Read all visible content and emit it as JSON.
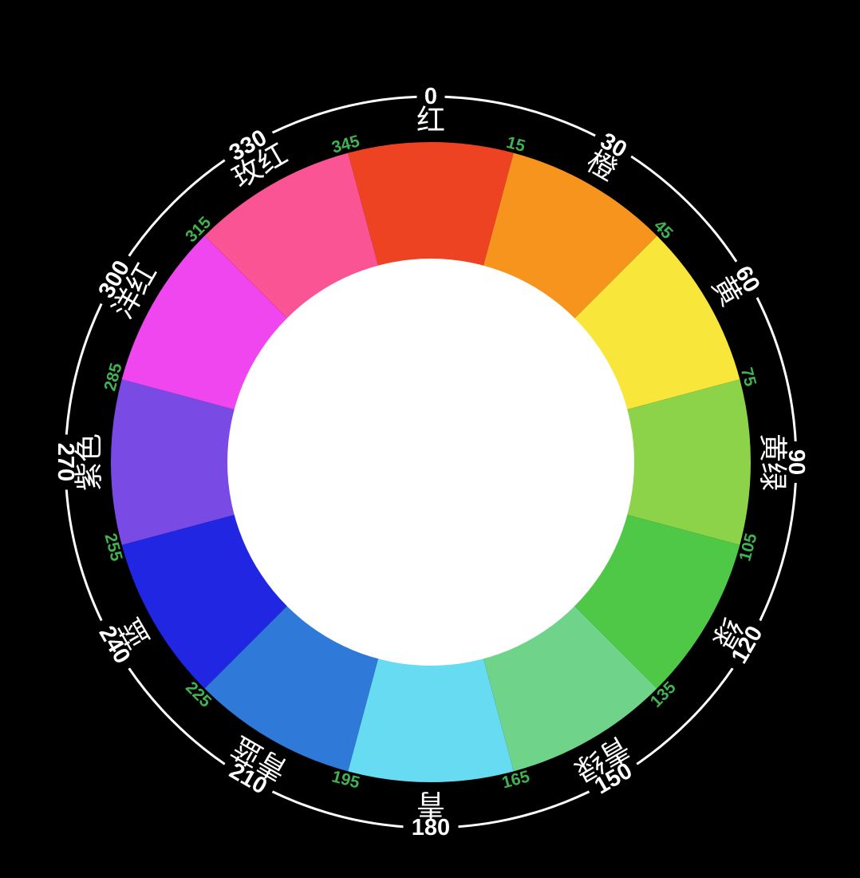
{
  "background_color": "#000000",
  "wheel": {
    "ring_stroke_color": "#ffffff",
    "degree_label_color": "#ffffff",
    "name_label_color": "#ffffff",
    "tick_color": "#42b151",
    "inner_disc_color": "#ffffff",
    "segments": [
      {
        "hue": 0,
        "degree_label": "0",
        "name_label": "红",
        "color": "#ee4323"
      },
      {
        "hue": 30,
        "degree_label": "30",
        "name_label": "橙",
        "color": "#f7941e"
      },
      {
        "hue": 60,
        "degree_label": "60",
        "name_label": "黄",
        "color": "#f8e63a"
      },
      {
        "hue": 90,
        "degree_label": "90",
        "name_label": "黄绿",
        "color": "#8dd34a"
      },
      {
        "hue": 120,
        "degree_label": "120",
        "name_label": "绿",
        "color": "#4fc847"
      },
      {
        "hue": 150,
        "degree_label": "150",
        "name_label": "青绿",
        "color": "#6fd389"
      },
      {
        "hue": 180,
        "degree_label": "180",
        "name_label": "青",
        "color": "#66dbf2"
      },
      {
        "hue": 210,
        "degree_label": "210",
        "name_label": "青蓝",
        "color": "#2f7ad9"
      },
      {
        "hue": 240,
        "degree_label": "240",
        "name_label": "蓝",
        "color": "#2026e2"
      },
      {
        "hue": 270,
        "degree_label": "270",
        "name_label": "紫色",
        "color": "#7a4ae5"
      },
      {
        "hue": 300,
        "degree_label": "300",
        "name_label": "洋红",
        "color": "#ef46ef"
      },
      {
        "hue": 330,
        "degree_label": "330",
        "name_label": "玫红",
        "color": "#fa5494"
      }
    ],
    "boundary_ticks": [
      "15",
      "45",
      "75",
      "105",
      "135",
      "165",
      "195",
      "225",
      "255",
      "285",
      "315",
      "345"
    ]
  },
  "chart_data": {
    "type": "pie",
    "title": "",
    "categories": [
      "红",
      "橙",
      "黄",
      "黄绿",
      "绿",
      "青绿",
      "青",
      "青蓝",
      "蓝",
      "紫色",
      "洋红",
      "玫红"
    ],
    "values": [
      30,
      30,
      30,
      30,
      30,
      30,
      30,
      30,
      30,
      30,
      30,
      30
    ],
    "hue_degrees": [
      0,
      30,
      60,
      90,
      120,
      150,
      180,
      210,
      240,
      270,
      300,
      330
    ],
    "slice_colors": [
      "#ee4323",
      "#f7941e",
      "#f8e63a",
      "#8dd34a",
      "#4fc847",
      "#6fd389",
      "#66dbf2",
      "#2f7ad9",
      "#2026e2",
      "#7a4ae5",
      "#ef46ef",
      "#fa5494"
    ],
    "boundary_tick_degrees": [
      15,
      45,
      75,
      105,
      135,
      165,
      195,
      225,
      255,
      285,
      315,
      345
    ],
    "legend_position": "none",
    "grid": false
  }
}
